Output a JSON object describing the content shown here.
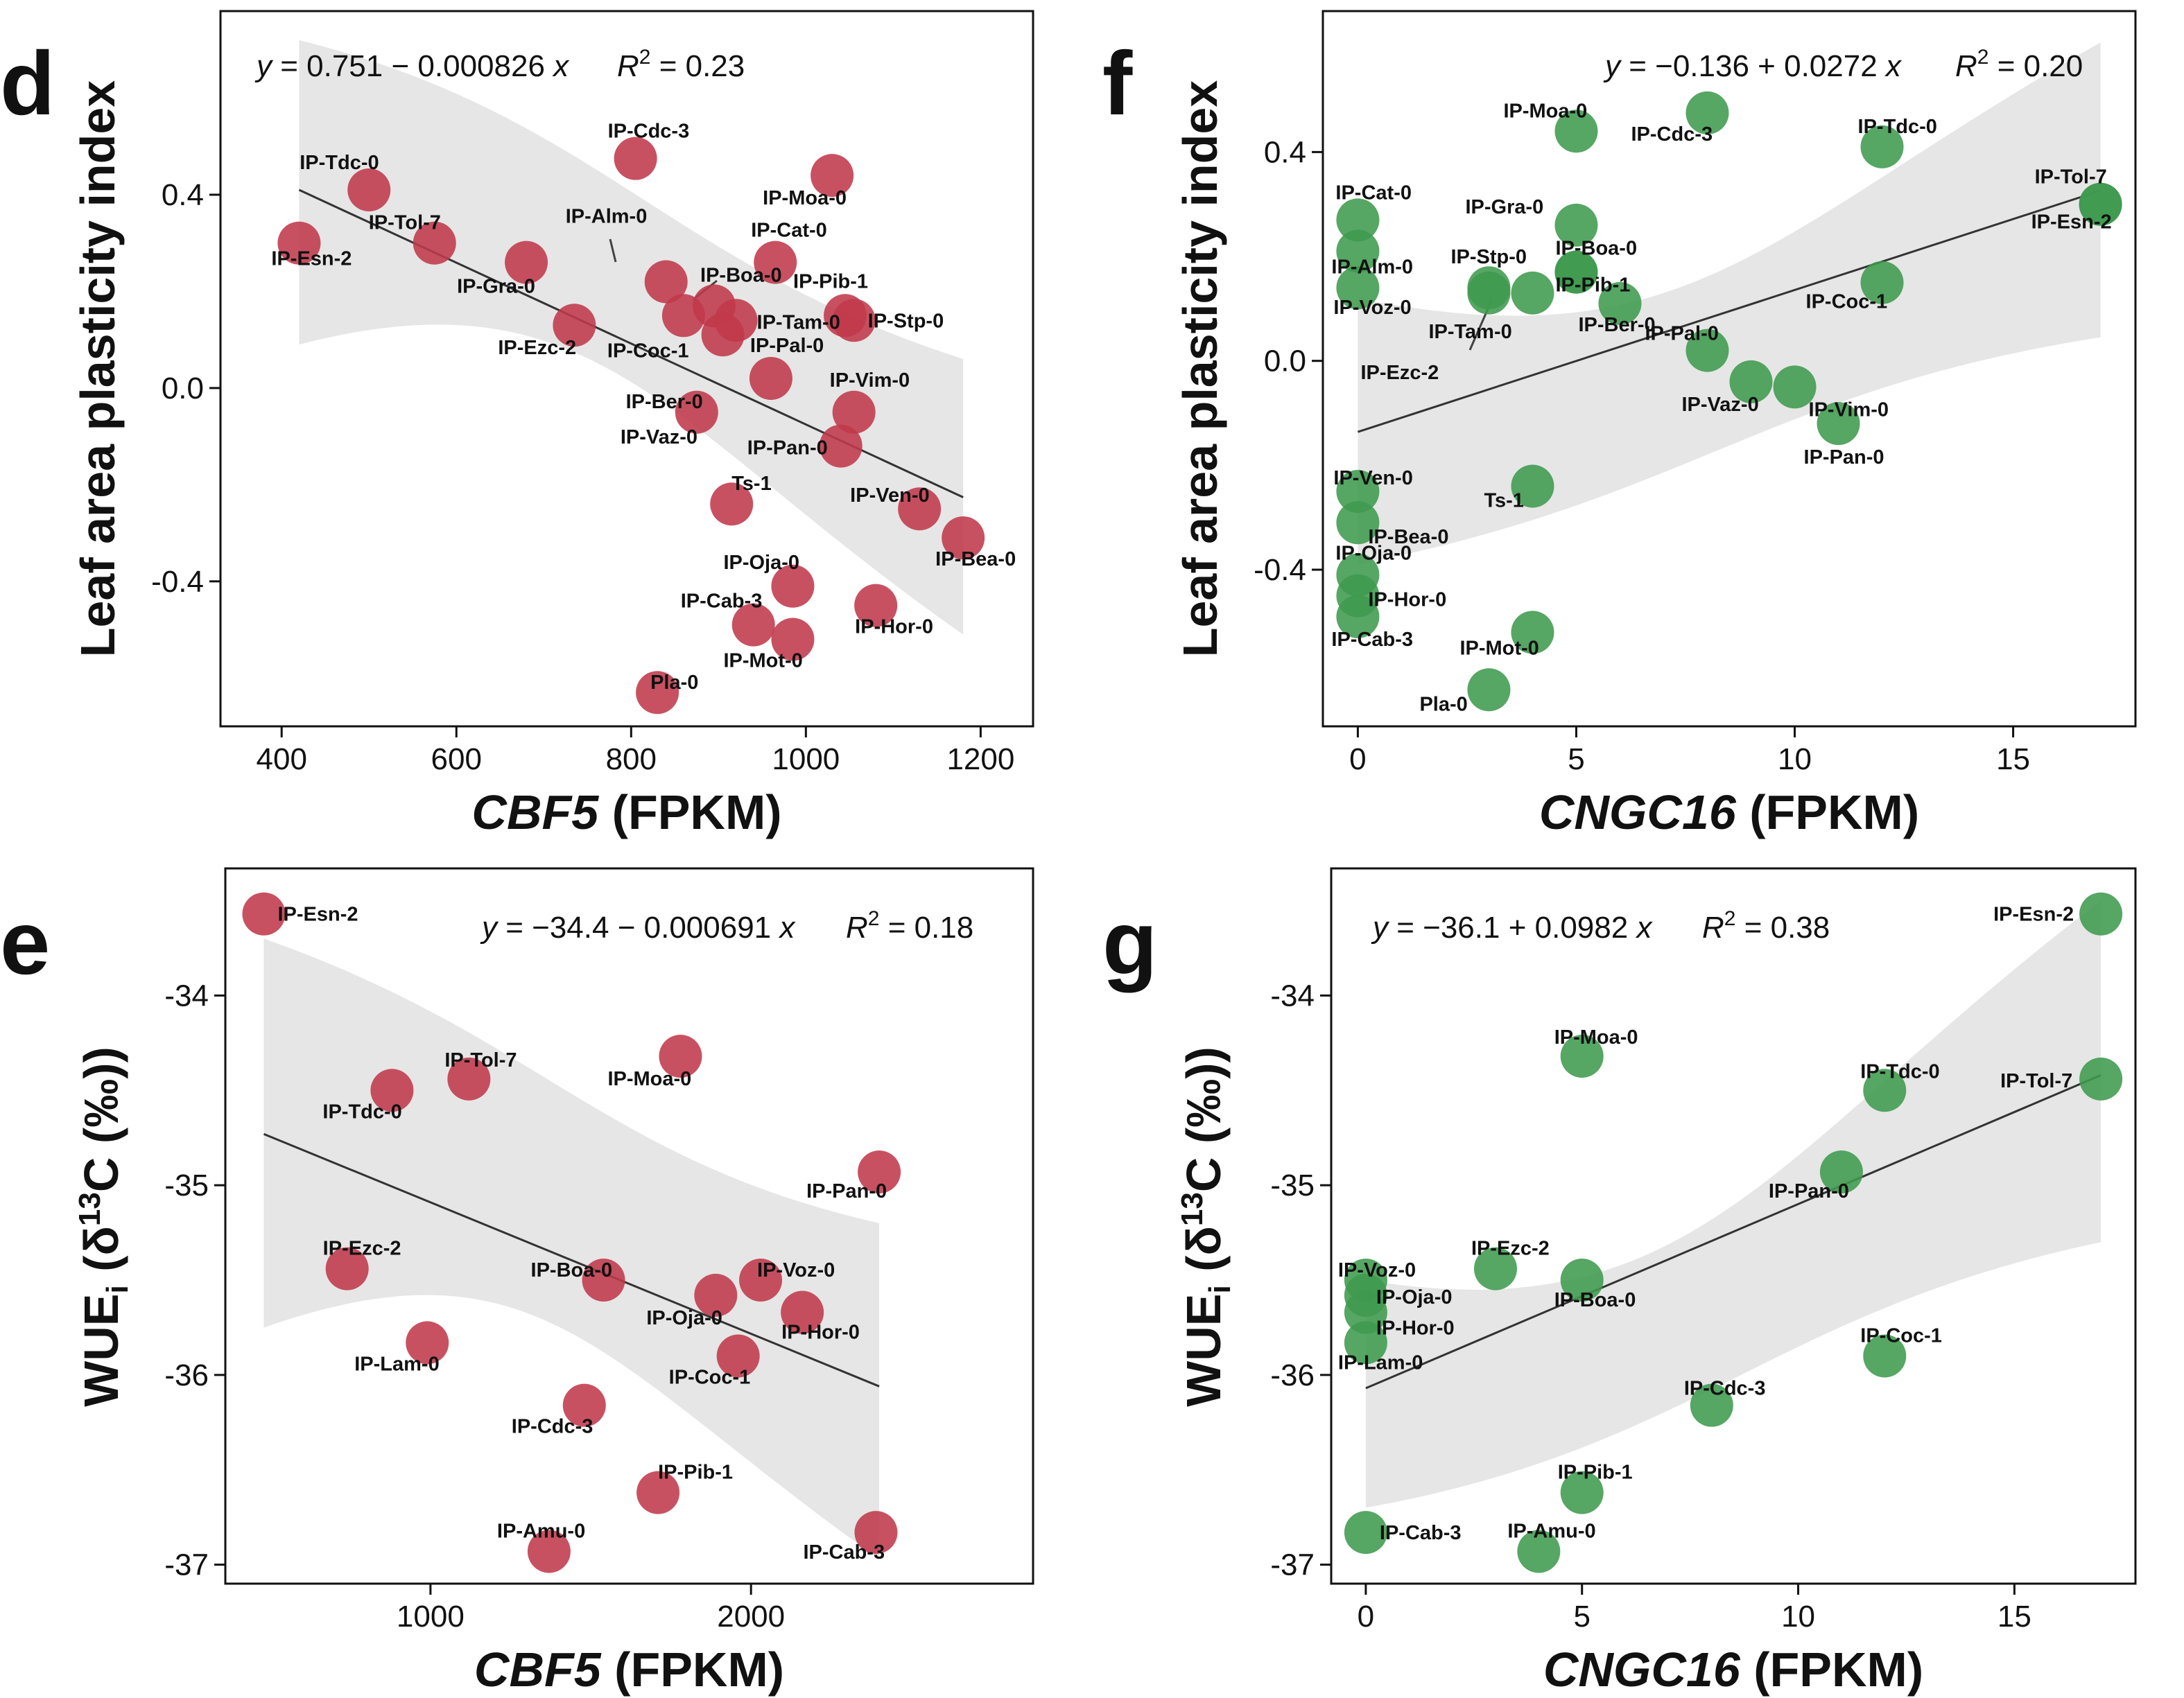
{
  "chart_data": [
    {
      "panel": "d",
      "type": "scatter",
      "color": "#c0394b",
      "xlabel_italic": "CBF5",
      "xlabel_rest": " (FPKM)",
      "ylabel": "Leaf area plasticity index",
      "equation": "y = 0.751 − 0.000826 x",
      "r2": "0.23",
      "xlim": [
        330,
        1260
      ],
      "ylim": [
        -0.7,
        0.78
      ],
      "xticks": [
        400,
        600,
        800,
        1000,
        1200
      ],
      "yticks": [
        0.4,
        0.0,
        -0.4
      ],
      "ytick_labels": [
        "0.4",
        "0.0",
        "-0.4"
      ],
      "fit": {
        "x": [
          420,
          1180
        ],
        "y": [
          0.41,
          -0.226
        ],
        "lower": [
          0.09,
          -0.51
        ],
        "upper": [
          0.72,
          0.06
        ]
      },
      "points": [
        {
          "label": "IP-Esn-2",
          "x": 420,
          "y": 0.3
        },
        {
          "label": "IP-Tdc-0",
          "x": 500,
          "y": 0.41
        },
        {
          "label": "IP-Tol-7",
          "x": 575,
          "y": 0.3
        },
        {
          "label": "IP-Gra-0",
          "x": 680,
          "y": 0.26
        },
        {
          "label": "IP-Ezc-2",
          "x": 735,
          "y": 0.13
        },
        {
          "label": "IP-Cdc-3",
          "x": 805,
          "y": 0.475
        },
        {
          "label": "IP-Alm-0",
          "x": 840,
          "y": 0.22
        },
        {
          "label": "IP-Coc-1",
          "x": 860,
          "y": 0.15
        },
        {
          "label": "IP-Boa-0",
          "x": 895,
          "y": 0.17
        },
        {
          "label": "IP-Ber-0",
          "x": 905,
          "y": 0.11
        },
        {
          "label": "IP-Tam-0",
          "x": 920,
          "y": 0.14
        },
        {
          "label": "IP-Vaz-0",
          "x": 875,
          "y": -0.05
        },
        {
          "label": "Ts-1",
          "x": 915,
          "y": -0.24
        },
        {
          "label": "IP-Pal-0",
          "x": 960,
          "y": 0.02
        },
        {
          "label": "IP-Cat-0",
          "x": 965,
          "y": 0.26
        },
        {
          "label": "IP-Moa-0",
          "x": 1030,
          "y": 0.44
        },
        {
          "label": "IP-Pib-1",
          "x": 1045,
          "y": 0.15
        },
        {
          "label": "IP-Stp-0",
          "x": 1055,
          "y": 0.14
        },
        {
          "label": "IP-Vim-0",
          "x": 1055,
          "y": -0.05
        },
        {
          "label": "IP-Pan-0",
          "x": 1040,
          "y": -0.12
        },
        {
          "label": "IP-Ven-0",
          "x": 1130,
          "y": -0.25
        },
        {
          "label": "IP-Bea-0",
          "x": 1180,
          "y": -0.31
        },
        {
          "label": "IP-Oja-0",
          "x": 985,
          "y": -0.41
        },
        {
          "label": "IP-Cab-3",
          "x": 940,
          "y": -0.49
        },
        {
          "label": "IP-Mot-0",
          "x": 985,
          "y": -0.52
        },
        {
          "label": "IP-Hor-0",
          "x": 1080,
          "y": -0.45
        },
        {
          "label": "Pla-0",
          "x": 830,
          "y": -0.63
        }
      ]
    },
    {
      "panel": "f",
      "type": "scatter",
      "color": "#3f9a4f",
      "xlabel_italic": "CNGC16",
      "xlabel_rest": " (FPKM)",
      "ylabel": "Leaf area plasticity index",
      "equation": "y = −0.136 + 0.0272 x",
      "r2": "0.20",
      "xlim": [
        -0.8,
        17.8
      ],
      "ylim": [
        -0.7,
        0.67
      ],
      "xticks": [
        0,
        5,
        10,
        15
      ],
      "yticks": [
        0.4,
        0.0,
        -0.4
      ],
      "ytick_labels": [
        "0.4",
        "0.0",
        "-0.4"
      ],
      "fit": {
        "x": [
          0,
          17
        ],
        "y": [
          -0.136,
          0.326
        ],
        "lower": [
          -0.39,
          0.045
        ],
        "upper": [
          0.12,
          0.61
        ]
      },
      "points": [
        {
          "label": "IP-Cat-0",
          "x": 0,
          "y": 0.27
        },
        {
          "label": "IP-Alm-0",
          "x": 0,
          "y": 0.21
        },
        {
          "label": "IP-Voz-0",
          "x": 0,
          "y": 0.14
        },
        {
          "label": "IP-Ven-0",
          "x": 0,
          "y": -0.25
        },
        {
          "label": "IP-Bea-0",
          "x": 0,
          "y": -0.31
        },
        {
          "label": "IP-Oja-0",
          "x": 0,
          "y": -0.41
        },
        {
          "label": "IP-Hor-0",
          "x": 0,
          "y": -0.45
        },
        {
          "label": "IP-Cab-3",
          "x": 0,
          "y": -0.49
        },
        {
          "label": "IP-Stp-0",
          "x": 3,
          "y": 0.14
        },
        {
          "label": "IP-Ezc-2",
          "x": 3,
          "y": 0.13
        },
        {
          "label": "Pla-0",
          "x": 3,
          "y": -0.63
        },
        {
          "label": "IP-Moa-0",
          "x": 5,
          "y": 0.44
        },
        {
          "label": "IP-Gra-0",
          "x": 5,
          "y": 0.26
        },
        {
          "label": "IP-Tam-0",
          "x": 4,
          "y": 0.13
        },
        {
          "label": "Ts-1",
          "x": 4,
          "y": -0.24
        },
        {
          "label": "IP-Mot-0",
          "x": 4,
          "y": -0.52
        },
        {
          "label": "IP-Boa-0",
          "x": 5,
          "y": 0.17
        },
        {
          "label": "IP-Pib-1",
          "x": 5,
          "y": 0.17
        },
        {
          "label": "IP-Ber-0",
          "x": 6,
          "y": 0.11
        },
        {
          "label": "IP-Cdc-3",
          "x": 8,
          "y": 0.475
        },
        {
          "label": "IP-Pal-0",
          "x": 8,
          "y": 0.02
        },
        {
          "label": "IP-Vaz-0",
          "x": 9,
          "y": -0.04
        },
        {
          "label": "IP-Vim-0",
          "x": 10,
          "y": -0.05
        },
        {
          "label": "IP-Pan-0",
          "x": 11,
          "y": -0.12
        },
        {
          "label": "IP-Tdc-0",
          "x": 12,
          "y": 0.41
        },
        {
          "label": "IP-Coc-1",
          "x": 12,
          "y": 0.15
        },
        {
          "label": "IP-Tol-7",
          "x": 17,
          "y": 0.3
        },
        {
          "label": "IP-Esn-2",
          "x": 17,
          "y": 0.3
        }
      ]
    },
    {
      "panel": "e",
      "type": "scatter",
      "color": "#c0394b",
      "xlabel_italic": "CBF5",
      "xlabel_rest": " (FPKM)",
      "ylabel_main": "WUE",
      "ylabel_sub": "i",
      "ylabel_mid": " (δ",
      "ylabel_sup": "13",
      "ylabel_end": "C (‰))",
      "equation": "y = −34.4 − 0.000691 x",
      "r2": "0.18",
      "xlim": [
        360,
        2880
      ],
      "ylim": [
        -37.1,
        -33.33
      ],
      "xticks": [
        1000,
        2000
      ],
      "yticks": [
        -34,
        -35,
        -36,
        -37
      ],
      "ytick_labels": [
        "-34",
        "-35",
        "-36",
        "-37"
      ],
      "fit": {
        "x": [
          480,
          2400
        ],
        "y": [
          -34.73,
          -36.06
        ],
        "lower": [
          -35.75,
          -36.97
        ],
        "upper": [
          -33.7,
          -35.2
        ]
      },
      "points": [
        {
          "label": "IP-Esn-2",
          "x": 480,
          "y": -33.57
        },
        {
          "label": "IP-Tdc-0",
          "x": 880,
          "y": -34.5
        },
        {
          "label": "IP-Tol-7",
          "x": 1120,
          "y": -34.44
        },
        {
          "label": "IP-Moa-0",
          "x": 1780,
          "y": -34.32
        },
        {
          "label": "IP-Pan-0",
          "x": 2400,
          "y": -34.93
        },
        {
          "label": "IP-Ezc-2",
          "x": 740,
          "y": -35.44
        },
        {
          "label": "IP-Lam-0",
          "x": 990,
          "y": -35.83
        },
        {
          "label": "IP-Boa-0",
          "x": 1540,
          "y": -35.5
        },
        {
          "label": "IP-Oja-0",
          "x": 1890,
          "y": -35.58
        },
        {
          "label": "IP-Voz-0",
          "x": 2030,
          "y": -35.5
        },
        {
          "label": "IP-Hor-0",
          "x": 2160,
          "y": -35.67
        },
        {
          "label": "IP-Coc-1",
          "x": 1960,
          "y": -35.9
        },
        {
          "label": "IP-Cdc-3",
          "x": 1480,
          "y": -36.16
        },
        {
          "label": "IP-Pib-1",
          "x": 1710,
          "y": -36.62
        },
        {
          "label": "IP-Amu-0",
          "x": 1370,
          "y": -36.93
        },
        {
          "label": "IP-Cab-3",
          "x": 2390,
          "y": -36.83
        }
      ]
    },
    {
      "panel": "g",
      "type": "scatter",
      "color": "#3f9a4f",
      "xlabel_italic": "CNGC16",
      "xlabel_rest": " (FPKM)",
      "ylabel_main": "WUE",
      "ylabel_sub": "i",
      "ylabel_mid": " (δ",
      "ylabel_sup": "13",
      "ylabel_end": "C (‰))",
      "equation": "y = −36.1 + 0.0982 x",
      "r2": "0.38",
      "xlim": [
        -0.8,
        17.8
      ],
      "ylim": [
        -37.1,
        -33.33
      ],
      "xticks": [
        0,
        5,
        10,
        15
      ],
      "yticks": [
        -34,
        -35,
        -36,
        -37
      ],
      "ytick_labels": [
        "-34",
        "-35",
        "-36",
        "-37"
      ],
      "fit": {
        "x": [
          0,
          17
        ],
        "y": [
          -36.07,
          -34.42
        ],
        "lower": [
          -36.7,
          -35.3
        ],
        "upper": [
          -35.5,
          -33.5
        ]
      },
      "points": [
        {
          "label": "IP-Voz-0",
          "x": 0,
          "y": -35.5
        },
        {
          "label": "IP-Oja-0",
          "x": 0,
          "y": -35.58
        },
        {
          "label": "IP-Hor-0",
          "x": 0,
          "y": -35.67
        },
        {
          "label": "IP-Lam-0",
          "x": 0,
          "y": -35.83
        },
        {
          "label": "IP-Cab-3",
          "x": 0,
          "y": -36.83
        },
        {
          "label": "IP-Ezc-2",
          "x": 3,
          "y": -35.44
        },
        {
          "label": "IP-Moa-0",
          "x": 5,
          "y": -34.32
        },
        {
          "label": "IP-Boa-0",
          "x": 5,
          "y": -35.5
        },
        {
          "label": "IP-Pib-1",
          "x": 5,
          "y": -36.62
        },
        {
          "label": "IP-Amu-0",
          "x": 4,
          "y": -36.93
        },
        {
          "label": "IP-Cdc-3",
          "x": 8,
          "y": -36.16
        },
        {
          "label": "IP-Pan-0",
          "x": 11,
          "y": -34.93
        },
        {
          "label": "IP-Tdc-0",
          "x": 12,
          "y": -34.5
        },
        {
          "label": "IP-Coc-1",
          "x": 12,
          "y": -35.9
        },
        {
          "label": "IP-Esn-2",
          "x": 17,
          "y": -33.57
        },
        {
          "label": "IP-Tol-7",
          "x": 17,
          "y": -34.44
        }
      ]
    }
  ]
}
